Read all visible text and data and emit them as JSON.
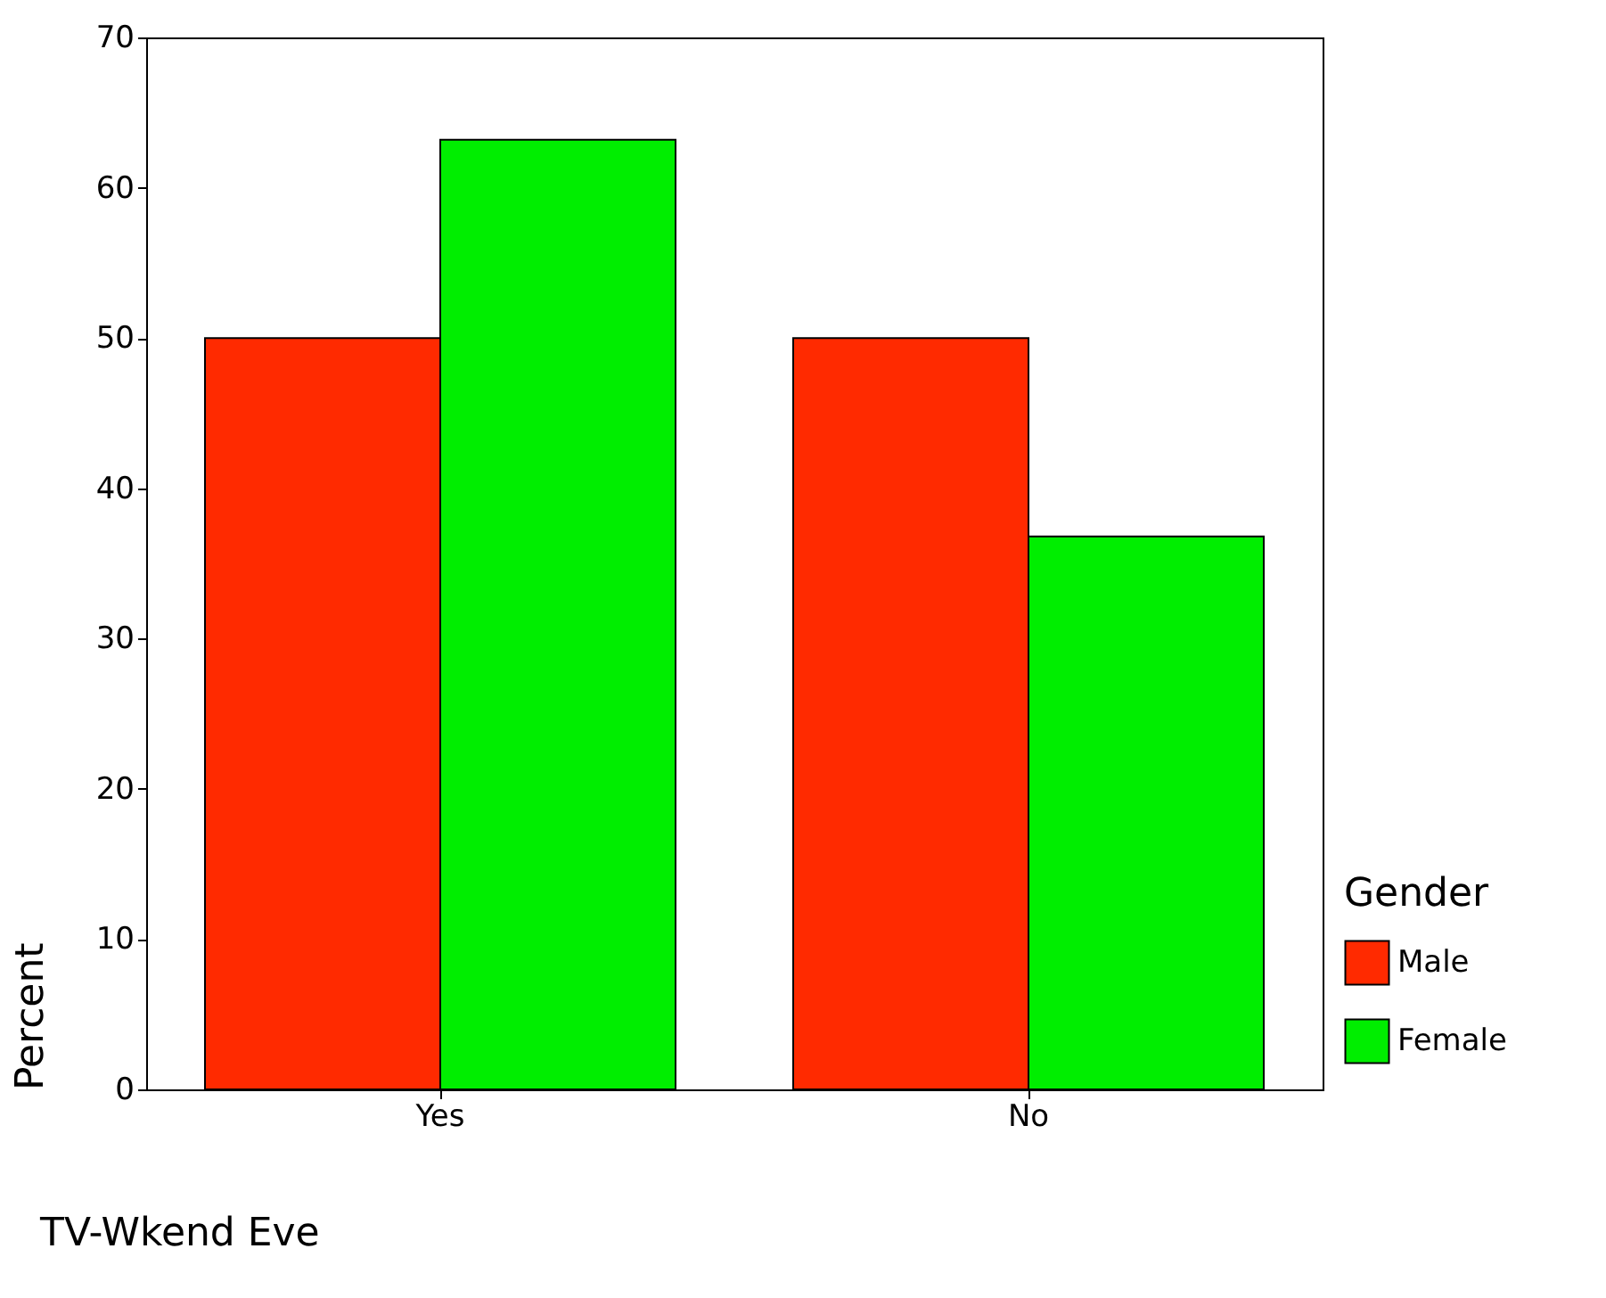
{
  "chart_data": {
    "type": "bar",
    "xlabel": "TV-Wkend Eve",
    "ylabel": "Percent",
    "legend_title": "Gender",
    "categories": [
      "Yes",
      "No"
    ],
    "series": [
      {
        "name": "Male",
        "color": "#ff2a00",
        "values": [
          50,
          50
        ]
      },
      {
        "name": "Female",
        "color": "#00ee00",
        "values": [
          63.2,
          36.8
        ]
      }
    ],
    "ylim": [
      0,
      70
    ],
    "yticks": [
      0,
      10,
      20,
      30,
      40,
      50,
      60,
      70
    ],
    "grid": false,
    "legend": "bottom right"
  }
}
